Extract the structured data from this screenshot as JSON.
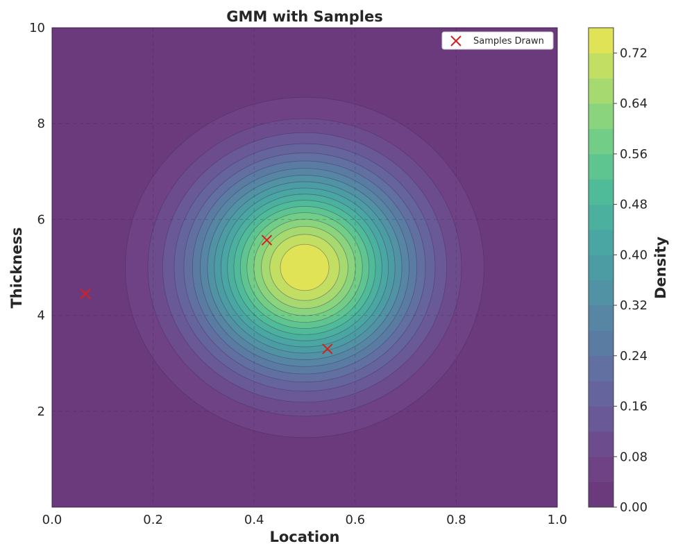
{
  "chart_data": {
    "type": "contour",
    "title": "GMM with Samples",
    "xlabel": "Location",
    "ylabel": "Thickness",
    "xlim": [
      0.0,
      1.0
    ],
    "ylim": [
      0.0,
      10.0
    ],
    "x_ticks": [
      "0.0",
      "0.2",
      "0.4",
      "0.6",
      "0.8",
      "1.0"
    ],
    "y_ticks": [
      "2",
      "4",
      "6",
      "8",
      "10"
    ],
    "grid": true,
    "density": {
      "center": [
        0.5,
        5.0
      ],
      "peak": 0.76,
      "half_width_at_0p04": [
        0.355,
        3.55
      ]
    },
    "contour_levels": [
      0.0,
      0.04,
      0.08,
      0.12,
      0.16,
      0.2,
      0.24,
      0.28,
      0.32,
      0.36,
      0.4,
      0.44,
      0.48,
      0.52,
      0.56,
      0.6,
      0.64,
      0.68,
      0.72,
      0.76
    ],
    "colorbar": {
      "label": "Density",
      "tick_labels": [
        "0.00",
        "0.08",
        "0.16",
        "0.24",
        "0.32",
        "0.40",
        "0.48",
        "0.56",
        "0.64",
        "0.72"
      ],
      "colors": [
        "#6b3a7c",
        "#6f4286",
        "#6d4c8d",
        "#6a5997",
        "#66649c",
        "#6170a0",
        "#5b7ca2",
        "#5686a3",
        "#5192a4",
        "#4c9ca4",
        "#49a6a2",
        "#4bb19e",
        "#4fbb98",
        "#5ec591",
        "#72cd87",
        "#8bd47e",
        "#a6d970",
        "#c2df63",
        "#dfe355",
        "#f3e74a"
      ]
    },
    "series": [
      {
        "name": "Samples Drawn",
        "type": "scatter",
        "marker": "x",
        "color": "#d62020",
        "points": [
          [
            0.066,
            4.45
          ],
          [
            0.425,
            5.57
          ],
          [
            0.545,
            3.3
          ]
        ]
      }
    ],
    "legend_position": "top-right"
  }
}
